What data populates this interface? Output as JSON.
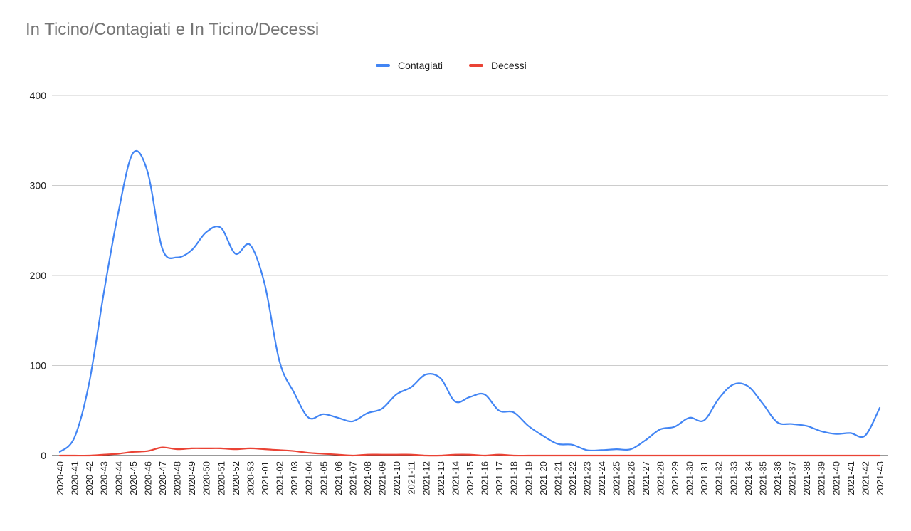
{
  "chart_data": {
    "type": "line",
    "title": "In Ticino/Contagiati e In Ticino/Decessi",
    "legend_position": "top-center",
    "grid": true,
    "ylim": [
      0,
      400
    ],
    "yticks": [
      0,
      100,
      200,
      300,
      400
    ],
    "categories": [
      "2020-40",
      "2020-41",
      "2020-42",
      "2020-43",
      "2020-44",
      "2020-45",
      "2020-46",
      "2020-47",
      "2020-48",
      "2020-49",
      "2020-50",
      "2020-51",
      "2020-52",
      "2020-53",
      "2021-01",
      "2021-02",
      "2021-03",
      "2021-04",
      "2021-05",
      "2021-06",
      "2021-07",
      "2021-08",
      "2021-09",
      "2021-10",
      "2021-11",
      "2021-12",
      "2021-13",
      "2021-14",
      "2021-15",
      "2021-16",
      "2021-17",
      "2021-18",
      "2021-19",
      "2021-20",
      "2021-21",
      "2021-22",
      "2021-23",
      "2021-24",
      "2021-25",
      "2021-26",
      "2021-27",
      "2021-28",
      "2021-29",
      "2021-30",
      "2021-31",
      "2021-32",
      "2021-33",
      "2021-34",
      "2021-35",
      "2021-36",
      "2021-37",
      "2021-38",
      "2021-39",
      "2021-40",
      "2021-41",
      "2021-42",
      "2021-43"
    ],
    "series": [
      {
        "name": "Contagiati",
        "color": "#4285f4",
        "values": [
          4,
          20,
          80,
          180,
          270,
          336,
          315,
          230,
          220,
          228,
          248,
          253,
          224,
          234,
          190,
          105,
          70,
          42,
          46,
          42,
          38,
          47,
          52,
          68,
          76,
          90,
          86,
          60,
          65,
          68,
          50,
          48,
          33,
          22,
          13,
          12,
          6,
          6,
          7,
          7,
          17,
          29,
          32,
          42,
          39,
          63,
          79,
          77,
          58,
          37,
          35,
          33,
          27,
          24,
          25,
          22,
          53
        ]
      },
      {
        "name": "Decessi",
        "color": "#ea4335",
        "values": [
          0,
          0,
          0,
          1,
          2,
          4,
          5,
          9,
          7,
          8,
          8,
          8,
          7,
          8,
          7,
          6,
          5,
          3,
          2,
          1,
          0,
          1,
          1,
          1,
          1,
          0,
          0,
          1,
          1,
          0,
          1,
          0,
          0,
          0,
          0,
          0,
          0,
          0,
          0,
          0,
          0,
          0,
          0,
          0,
          0,
          0,
          0,
          0,
          0,
          0,
          0,
          0,
          0,
          0,
          0,
          0,
          0
        ]
      }
    ]
  }
}
